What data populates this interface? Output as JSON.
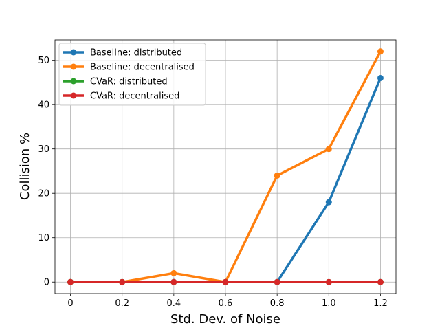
{
  "chart_data": {
    "type": "line",
    "title": "",
    "xlabel": "Std. Dev. of Noise",
    "ylabel": "Collision %",
    "x": [
      0,
      0.2,
      0.4,
      0.6,
      0.8,
      1.0,
      1.2
    ],
    "x_tick_labels": [
      "0",
      "0.2",
      "0.4",
      "0.6",
      "0.8",
      "1.0",
      "1.2"
    ],
    "y_ticks": [
      0,
      10,
      20,
      30,
      40,
      50
    ],
    "xlim": [
      -0.06,
      1.26
    ],
    "ylim": [
      -2.6,
      54.6
    ],
    "grid": true,
    "legend_position": "top-left",
    "series": [
      {
        "name": "Baseline: distributed",
        "color": "#1f77b4",
        "values": [
          0,
          0,
          0,
          0,
          0,
          18,
          46
        ]
      },
      {
        "name": "Baseline: decentralised",
        "color": "#ff7f0e",
        "values": [
          0,
          0,
          2,
          0,
          24,
          30,
          52
        ]
      },
      {
        "name": "CVaR: distributed",
        "color": "#2ca02c",
        "values": [
          0,
          0,
          0,
          0,
          0,
          0,
          0
        ]
      },
      {
        "name": "CVaR: decentralised",
        "color": "#d62728",
        "values": [
          0,
          0,
          0,
          0,
          0,
          0,
          0
        ]
      }
    ]
  }
}
